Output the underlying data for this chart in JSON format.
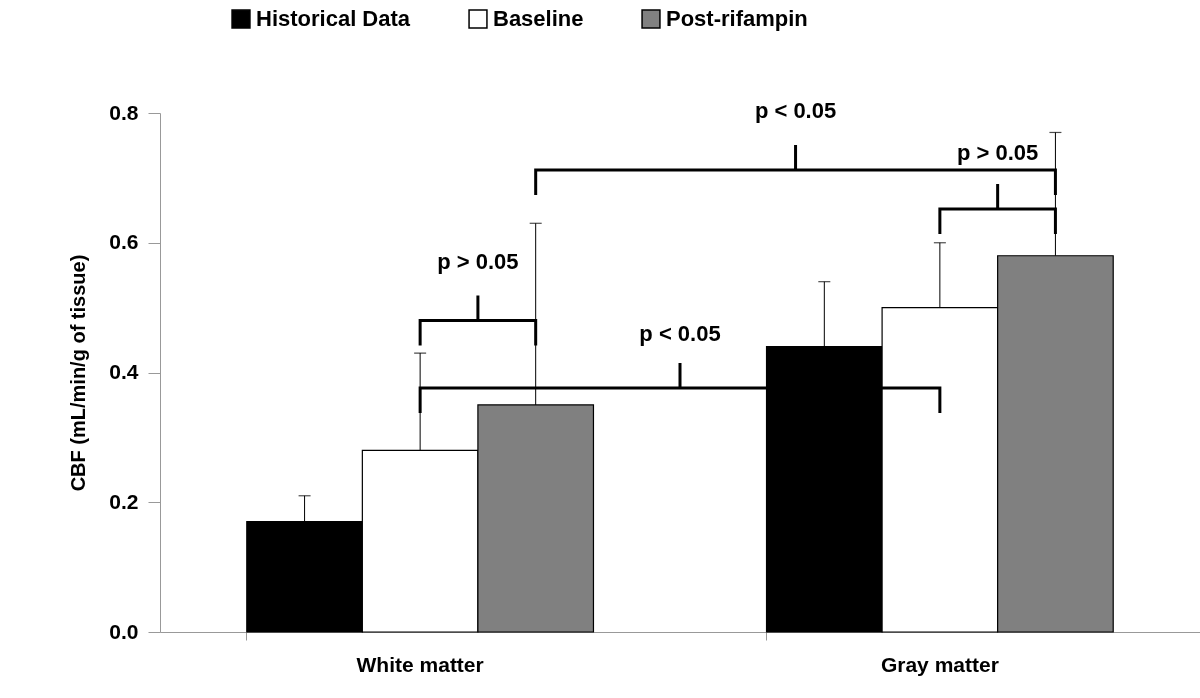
{
  "chart_data": {
    "type": "bar",
    "ylabel": "CBF (mL/min/g of tissue)",
    "categories": [
      "White matter",
      "Gray matter"
    ],
    "series": [
      {
        "name": "Historical Data",
        "color": "#000000",
        "values": [
          0.17,
          0.44
        ],
        "errors": [
          [
            0.17,
            0.21
          ],
          [
            0.44,
            0.54
          ]
        ]
      },
      {
        "name": "Baseline",
        "color": "#ffffff",
        "values": [
          0.28,
          0.5
        ],
        "errors": [
          [
            0.28,
            0.43
          ],
          [
            0.5,
            0.6
          ]
        ]
      },
      {
        "name": "Post-rifampin",
        "color": "#808080",
        "values": [
          0.35,
          0.58
        ],
        "errors": [
          [
            0.35,
            0.63
          ],
          [
            0.58,
            0.77
          ]
        ]
      }
    ],
    "ylim": [
      0,
      0.8
    ],
    "yticks": [
      {
        "value": 0,
        "label": "0.0"
      },
      0.2,
      0.4,
      0.6,
      0.8
    ],
    "grid": false,
    "legend": "top",
    "annotations": [
      "p > 0.05",
      "p < 0.05",
      "p < 0.05",
      "p > 0.05"
    ]
  }
}
